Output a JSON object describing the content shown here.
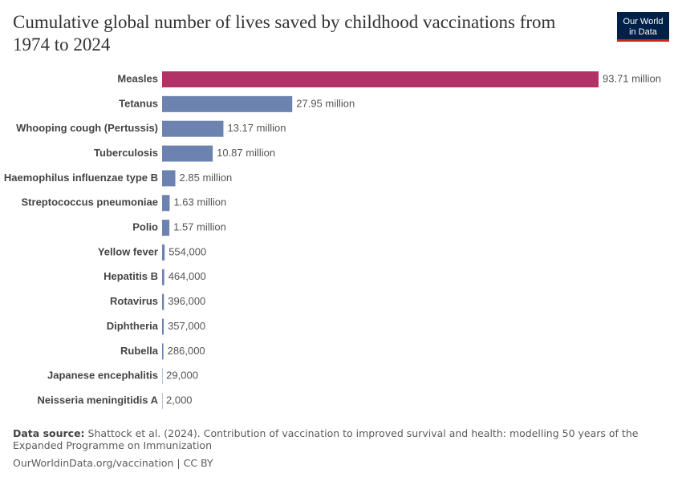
{
  "chart_data": {
    "type": "bar",
    "orientation": "horizontal",
    "title": "Cumulative global number of lives saved by childhood vaccinations from 1974 to 2024",
    "categories": [
      "Measles",
      "Tetanus",
      "Whooping cough (Pertussis)",
      "Tuberculosis",
      "Haemophilus influenzae type B",
      "Streptococcus pneumoniae",
      "Polio",
      "Yellow fever",
      "Hepatitis B",
      "Rotavirus",
      "Diphtheria",
      "Rubella",
      "Japanese encephalitis",
      "Neisseria meningitidis A"
    ],
    "values": [
      93710000,
      27950000,
      13170000,
      10870000,
      2850000,
      1630000,
      1570000,
      554000,
      464000,
      396000,
      357000,
      286000,
      29000,
      2000
    ],
    "value_labels": [
      "93.71 million",
      "27.95 million",
      "13.17 million",
      "10.87 million",
      "2.85 million",
      "1.63 million",
      "1.57 million",
      "554,000",
      "464,000",
      "396,000",
      "357,000",
      "286,000",
      "29,000",
      "2,000"
    ],
    "colors": [
      "#b13266",
      "#6c83b0",
      "#6c83b0",
      "#6c83b0",
      "#6c83b0",
      "#6c83b0",
      "#6c83b0",
      "#6c83b0",
      "#6c83b0",
      "#6c83b0",
      "#6c83b0",
      "#6c83b0",
      "#6c83b0",
      "#6c83b0"
    ],
    "logo": [
      "Our World",
      "in Data"
    ],
    "source_label": "Data source:",
    "source": "Shattock et al. (2024). Contribution of vaccination to improved survival and health: modelling 50 years of the Expanded Programme on Immunization",
    "footer": "OurWorldinData.org/vaccination | CC BY"
  }
}
